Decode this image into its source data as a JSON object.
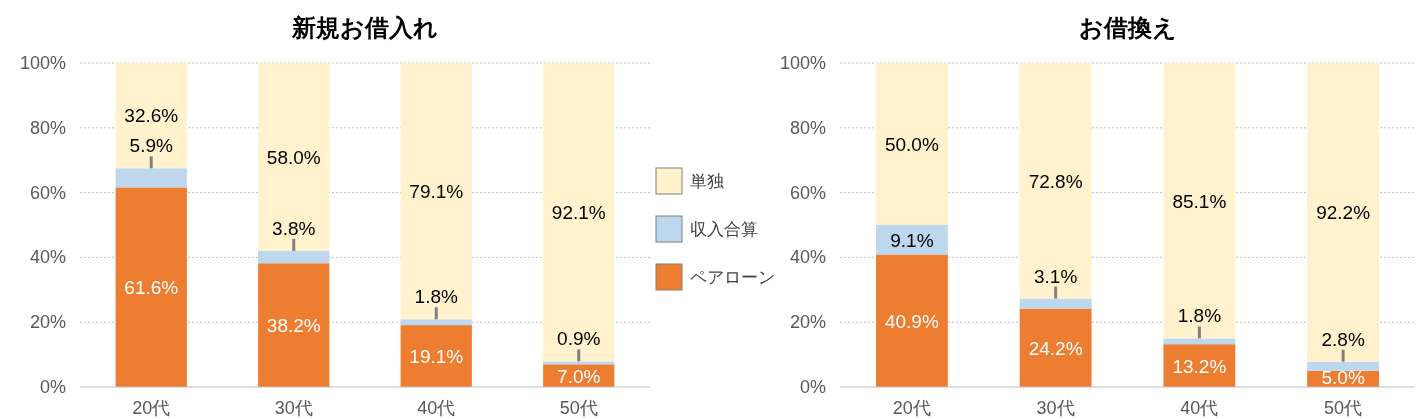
{
  "chart_data": [
    {
      "type": "bar",
      "stacked": true,
      "title": "新規お借入れ",
      "categories": [
        "20代",
        "30代",
        "40代",
        "50代"
      ],
      "series": [
        {
          "name": "ペアローン",
          "color": "#ed7d31",
          "values": [
            61.6,
            38.2,
            19.1,
            7.0
          ],
          "value_labels": [
            "61.6%",
            "38.2%",
            "19.1%",
            "7.0%"
          ]
        },
        {
          "name": "収入合算",
          "color": "#bdd7ee",
          "values": [
            5.9,
            3.8,
            1.8,
            0.9
          ],
          "value_labels": [
            "5.9%",
            "3.8%",
            "1.8%",
            "0.9%"
          ]
        },
        {
          "name": "単独",
          "color": "#fff2cc",
          "values": [
            32.6,
            58.0,
            79.1,
            92.1
          ],
          "value_labels": [
            "32.6%",
            "58.0%",
            "79.1%",
            "92.1%"
          ]
        }
      ],
      "ylim": [
        0,
        100
      ],
      "yticks": [
        {
          "value": 0,
          "label": "0%"
        },
        {
          "value": 20,
          "label": "20%"
        },
        {
          "value": 40,
          "label": "40%"
        },
        {
          "value": 60,
          "label": "60%"
        },
        {
          "value": 80,
          "label": "80%"
        },
        {
          "value": 100,
          "label": "100%"
        }
      ],
      "grid": "y",
      "legend": "right"
    },
    {
      "type": "bar",
      "stacked": true,
      "title": "お借換え",
      "categories": [
        "20代",
        "30代",
        "40代",
        "50代"
      ],
      "series": [
        {
          "color": "#ed7d31",
          "values": [
            40.9,
            24.2,
            13.2,
            5.0
          ],
          "value_labels": [
            "40.9%",
            "24.2%",
            "13.2%",
            "5.0%"
          ]
        },
        {
          "color": "#bdd7ee",
          "values": [
            9.1,
            3.1,
            1.8,
            2.8
          ],
          "value_labels": [
            "9.1%",
            "3.1%",
            "1.8%",
            "2.8%"
          ]
        },
        {
          "color": "#fff2cc",
          "values": [
            50.0,
            72.8,
            85.1,
            92.2
          ],
          "value_labels": [
            "50.0%",
            "72.8%",
            "85.1%",
            "92.2%"
          ]
        }
      ],
      "ylim": [
        0,
        100
      ],
      "yticks": [
        {
          "value": 0,
          "label": "0%"
        },
        {
          "value": 20,
          "label": "20%"
        },
        {
          "value": 40,
          "label": "40%"
        },
        {
          "value": 60,
          "label": "60%"
        },
        {
          "value": 80,
          "label": "80%"
        },
        {
          "value": 100,
          "label": "100%"
        }
      ],
      "grid": "y"
    }
  ]
}
